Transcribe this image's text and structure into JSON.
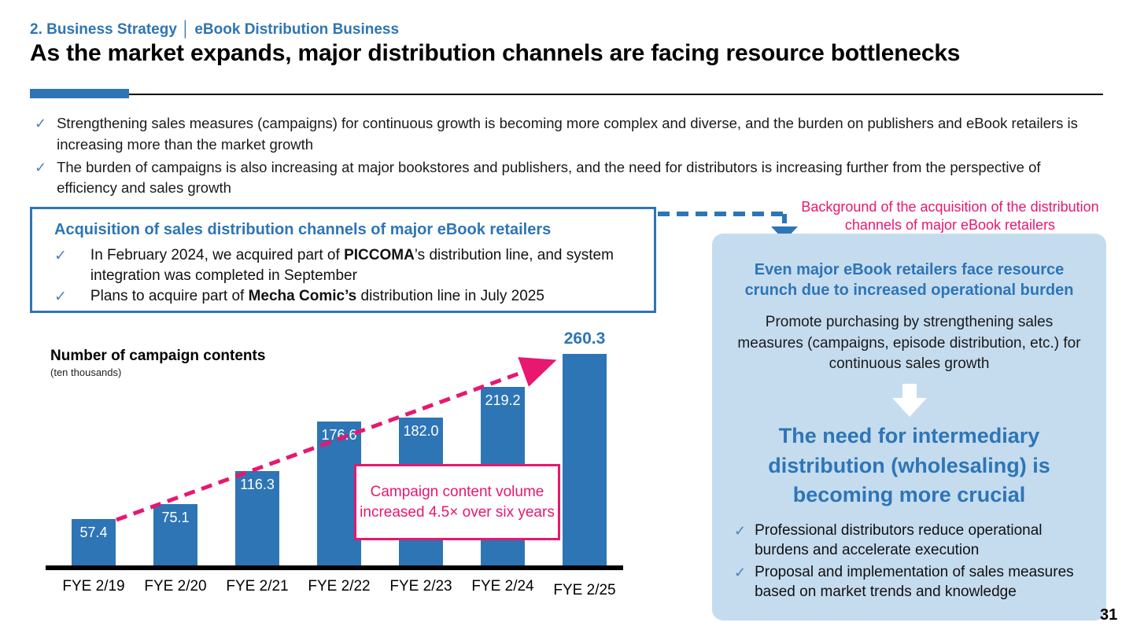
{
  "slide": {
    "kicker": "2. Business Strategy │ eBook Distribution Business",
    "title": "As the market expands, major distribution channels are facing resource bottlenecks",
    "page_number": "31"
  },
  "icons": {
    "check": "✓",
    "down-arrow": "block-down-arrow",
    "dashed-arrow": "elbow-dashed-arrow"
  },
  "colors": {
    "accent_blue": "#2E75B6",
    "panel_blue": "#C5DCEF",
    "pink": "#E8176F",
    "bar_blue": "#2E75B6"
  },
  "intro_bullets": [
    "Strengthening sales measures (campaigns) for continuous growth is becoming more complex and diverse, and the burden on publishers and eBook retailers is increasing more than the market growth",
    "The burden of campaigns is also increasing at major bookstores and publishers, and the need for distributors is increasing further from the perspective of efficiency and sales growth"
  ],
  "acquisition_box": {
    "title": "Acquisition of sales distribution channels of major eBook retailers",
    "bullets": [
      {
        "pre": "In February 2024, we acquired part of ",
        "bold": "PICCOMA",
        "post": "’s distribution line, and system integration was completed in September"
      },
      {
        "pre": "Plans to acquire part of ",
        "bold": "Mecha Comic’s",
        "post": " distribution line in July 2025"
      }
    ]
  },
  "connector": {
    "label": "Background of the acquisition of the distribution channels of major eBook retailers"
  },
  "insight_panel": {
    "heading": "Even major eBook retailers face resource crunch due to increased operational burden",
    "body": "Promote purchasing by strengthening sales measures (campaigns, episode distribution, etc.) for continuous sales growth",
    "emphasis": "The need for intermediary distribution (wholesaling) is becoming more crucial",
    "bullets": [
      "Professional distributors reduce operational burdens and accelerate execution",
      "Proposal and implementation of sales measures based on market trends and knowledge"
    ]
  },
  "chart_data": {
    "type": "bar",
    "title": "Number of campaign contents",
    "unit": "(ten thousands)",
    "categories": [
      "FYE 2/19",
      "FYE 2/20",
      "FYE 2/21",
      "FYE 2/22",
      "FYE 2/23",
      "FYE 2/24",
      "FYE 2/25"
    ],
    "values": [
      57.4,
      75.1,
      116.3,
      176.6,
      182.0,
      219.2,
      260.3
    ],
    "value_labels": [
      "57.4",
      "75.1",
      "116.3",
      "176.6",
      "182.0",
      "219.2",
      "260.3"
    ],
    "ylim": [
      0,
      280
    ],
    "grid": false,
    "legend": "none",
    "bar_color": "#2E75B6",
    "trend_annotation": "increasing dashed arrow from first bar to last bar",
    "annotation": "Campaign content volume increased 4.5× over six years"
  }
}
